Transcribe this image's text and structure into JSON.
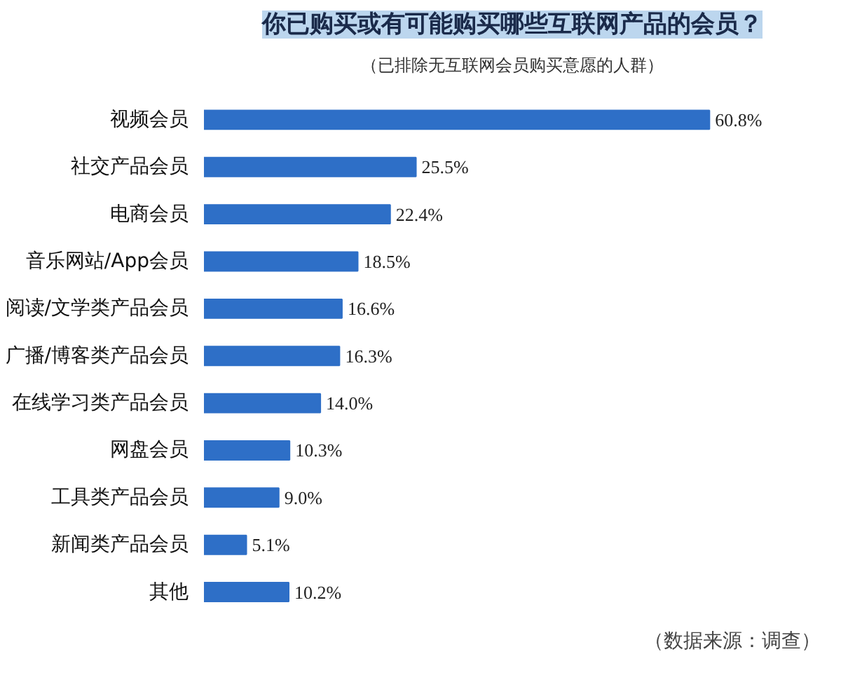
{
  "chart_data": {
    "type": "bar",
    "orientation": "horizontal",
    "title": "你已购买或有可能购买哪些互联网产品的会员？",
    "subtitle": "（已排除无互联网会员购买意愿的人群）",
    "categories": [
      "视频会员",
      "社交产品会员",
      "电商会员",
      "音乐网站/App会员",
      "阅读/文学类产品会员",
      "广播/博客类产品会员",
      "在线学习类产品会员",
      "网盘会员",
      "工具类产品会员",
      "新闻类产品会员",
      "其他"
    ],
    "values": [
      60.8,
      25.5,
      22.4,
      18.5,
      16.6,
      16.3,
      14.0,
      10.3,
      9.0,
      5.1,
      10.2
    ],
    "value_labels": [
      "60.8%",
      "25.5%",
      "22.4%",
      "18.5%",
      "16.6%",
      "16.3%",
      "14.0%",
      "10.3%",
      "9.0%",
      "5.1%",
      "10.2%"
    ],
    "color": "#2e6fc7",
    "grid": false,
    "annotations": [
      "（数据来源：调查）"
    ]
  }
}
